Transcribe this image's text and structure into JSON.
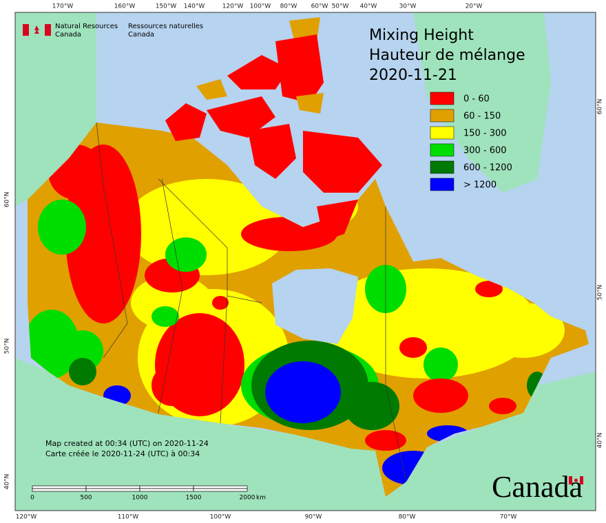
{
  "header": {
    "org_en": [
      "Natural Resources",
      "Canada"
    ],
    "org_fr": [
      "Ressources naturelles",
      "Canada"
    ]
  },
  "title": [
    "Mixing Height",
    "Hauteur de mélange",
    "2020-11-21"
  ],
  "legend": [
    {
      "label": "0 - 60",
      "color": "#ff0000"
    },
    {
      "label": "60 - 150",
      "color": "#e0a000"
    },
    {
      "label": "150 - 300",
      "color": "#ffff00"
    },
    {
      "label": "300 - 600",
      "color": "#00dd00"
    },
    {
      "label": "600 - 1200",
      "color": "#007a00"
    },
    {
      "label": "> 1200",
      "color": "#0000ff"
    }
  ],
  "axes": {
    "top": [
      "170°W",
      "160°W",
      "150°W",
      "140°W",
      "120°W",
      "100°W",
      "80°W",
      "60°W",
      "50°W",
      "40°W",
      "30°W",
      "20°W"
    ],
    "bottom": [
      "120°W",
      "110°W",
      "100°W",
      "90°W",
      "80°W",
      "70°W"
    ],
    "left": [
      "60°N",
      "50°N",
      "40°N"
    ],
    "right": [
      "60°N",
      "50°N",
      "40°N"
    ]
  },
  "footer": [
    "Map created at 00:34 (UTC) on 2020-11-24",
    "Carte créée le 2020-11-24 (UTC) à 00:34"
  ],
  "scale_bar": {
    "labels": [
      "0",
      "500",
      "1000",
      "1500",
      "2000"
    ],
    "unit": "km"
  },
  "wordmark": "Canada"
}
